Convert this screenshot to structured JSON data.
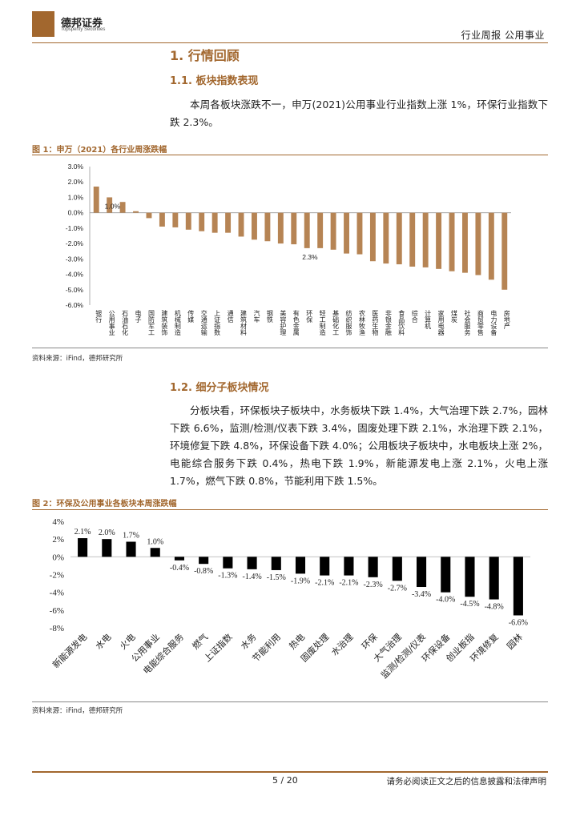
{
  "header": {
    "logo_name": "德邦证券",
    "logo_sub": "Topsperity Securities",
    "right": "行业周报  公用事业"
  },
  "section1": {
    "title": "1. 行情回顾",
    "sub1_title": "1.1. 板块指数表现",
    "sub1_text": "本周各板块涨跌不一，申万(2021)公用事业行业指数上涨 1%，环保行业指数下跌 2.3%。"
  },
  "figure1": {
    "title": "图 1：申万（2021）各行业周涨跌幅",
    "source": "资料来源：iFind，德邦研究所"
  },
  "section2": {
    "sub2_title": "1.2. 细分子板块情况",
    "sub2_text": "分板块看，环保板块子板块中，水务板块下跌 1.4%，大气治理下跌 2.7%，园林下跌 6.6%，监测/检测/仪表下跌 3.4%，固废处理下跌 2.1%，水治理下跌 2.1%，环境修复下跌 4.8%，环保设备下跌 4.0%；公用板块子板块中，水电板块上涨 2%，电能综合服务下跌 0.4%，热电下跌 1.9%，新能源发电上涨 2.1%，火电上涨 1.7%，燃气下跌 0.8%，节能利用下跌 1.5%。"
  },
  "figure2": {
    "title": "图 2：环保及公用事业各板块本周涨跌幅",
    "source": "资料来源：iFind，德邦研究所"
  },
  "footer": {
    "page": "5 / 20",
    "disclaimer": "请务必阅读正文之后的信息披露和法律声明"
  },
  "chart_data": [
    {
      "type": "bar",
      "categories": [
        "银行",
        "公用事业",
        "石油石化",
        "电子",
        "国防军工",
        "建筑装饰",
        "机械制造",
        "传媒",
        "交通运输",
        "上证指数",
        "通信",
        "建筑材料",
        "汽车",
        "钢铁",
        "美容护理",
        "有色金属",
        "环保",
        "轻工制造",
        "基础化工",
        "纺织服饰",
        "农林牧渔",
        "医药生物",
        "非银金融",
        "食品饮料",
        "综合",
        "计算机",
        "家用电器",
        "煤炭",
        "社会服务",
        "商贸零售",
        "电力设备",
        "房地产"
      ],
      "values": [
        1.7,
        1.0,
        0.7,
        0.1,
        -0.35,
        -0.9,
        -0.95,
        -1.1,
        -1.2,
        -1.3,
        -1.3,
        -1.55,
        -1.75,
        -1.85,
        -2.0,
        -2.05,
        -2.3,
        -2.3,
        -2.4,
        -2.65,
        -2.7,
        -3.15,
        -3.3,
        -3.35,
        -3.5,
        -3.55,
        -3.65,
        -3.8,
        -3.9,
        -4.05,
        -4.35,
        -5.0
      ],
      "annotations": [
        {
          "category": "公用事业",
          "text": "1.0%"
        },
        {
          "category": "环保",
          "text": "2.3%"
        }
      ],
      "yticks": [
        "3.0%",
        "2.0%",
        "1.0%",
        "0.0%",
        "-1.0%",
        "-2.0%",
        "-3.0%",
        "-4.0%",
        "-5.0%",
        "-6.0%"
      ],
      "ylim": [
        -6,
        3
      ],
      "color": "#b68454",
      "grid": false
    },
    {
      "type": "bar",
      "categories": [
        "新能源发电",
        "水电",
        "火电",
        "公用事业",
        "电能综合服务",
        "燃气",
        "上证指数",
        "水务",
        "节能利用",
        "热电",
        "固废处理",
        "水治理",
        "环保",
        "大气治理",
        "监测/检测/仪表",
        "环保设备",
        "创业板指",
        "环境修复",
        "园林"
      ],
      "values": [
        2.1,
        2.0,
        1.7,
        1.0,
        -0.4,
        -0.8,
        -1.3,
        -1.4,
        -1.5,
        -1.9,
        -2.1,
        -2.1,
        -2.3,
        -2.7,
        -3.4,
        -4.0,
        -4.5,
        -4.8,
        -6.6
      ],
      "labels": [
        "2.1%",
        "2.0%",
        "1.7%",
        "1.0%",
        "-0.4%",
        "-0.8%",
        "-1.3%",
        "-1.4%",
        "-1.5%",
        "-1.9%",
        "-2.1%",
        "-2.1%",
        "-2.3%",
        "-2.7%",
        "-3.4%",
        "-4.0%",
        "-4.5%",
        "-4.8%",
        "-6.6%"
      ],
      "yticks": [
        "4%",
        "2%",
        "0%",
        "-2%",
        "-4%",
        "-6%",
        "-8%"
      ],
      "ylim": [
        -8,
        4
      ],
      "color": "#000000",
      "grid": false
    }
  ]
}
